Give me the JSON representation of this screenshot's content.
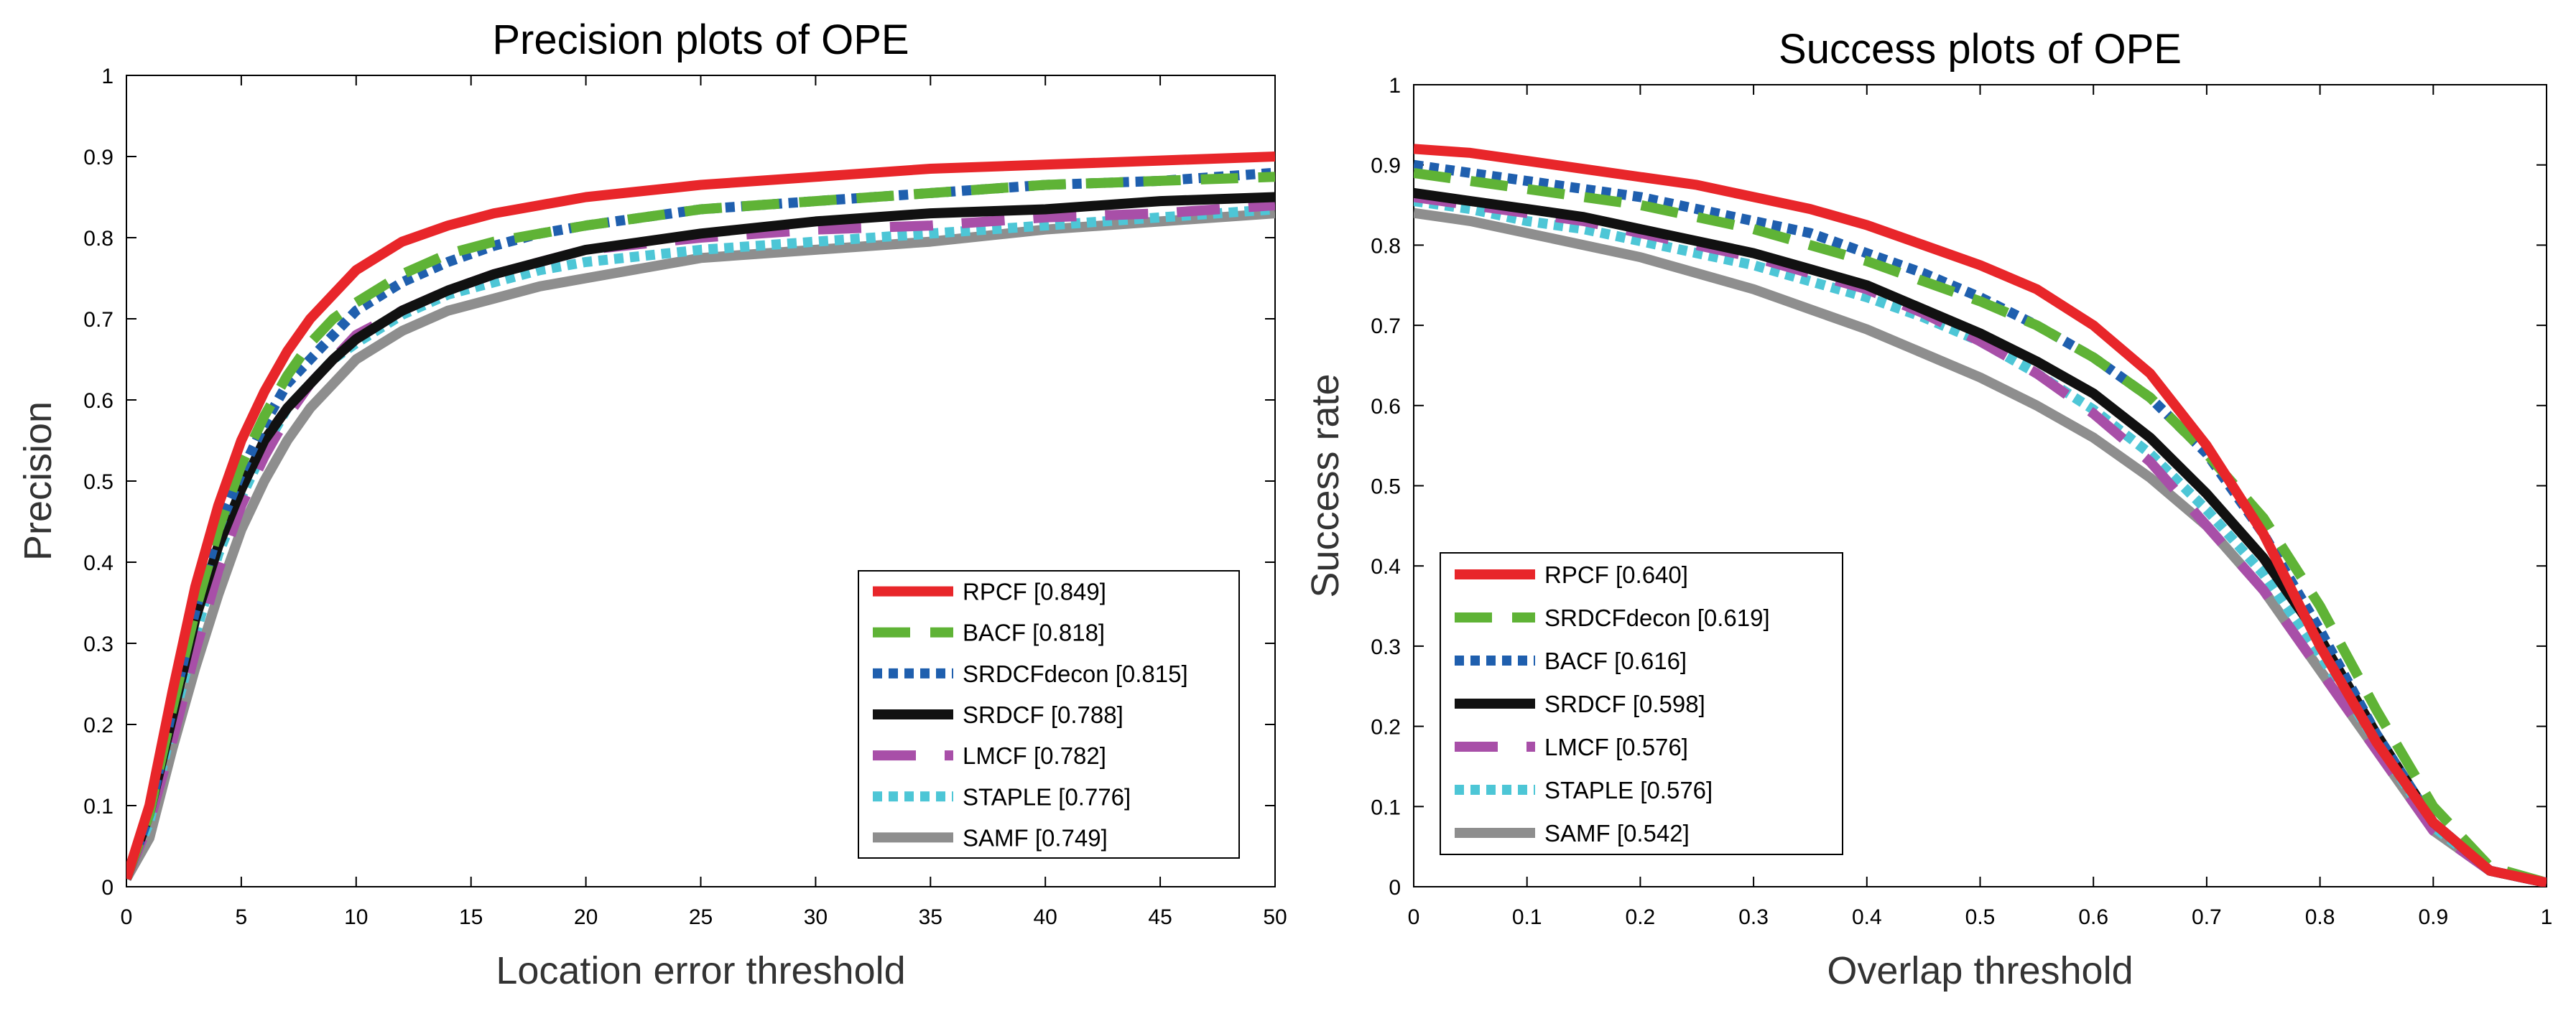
{
  "chart_data": [
    {
      "type": "line",
      "title": "Precision plots of OPE",
      "xlabel": "Location error threshold",
      "ylabel": "Precision",
      "xlim": [
        0,
        50
      ],
      "ylim": [
        0,
        1
      ],
      "xticks": [
        0,
        5,
        10,
        15,
        20,
        25,
        30,
        35,
        40,
        45,
        50
      ],
      "yticks": [
        0,
        0.1,
        0.2,
        0.3,
        0.4,
        0.5,
        0.6,
        0.7,
        0.8,
        0.9,
        1
      ],
      "x": [
        0,
        1,
        2,
        3,
        4,
        5,
        6,
        7,
        8,
        9,
        10,
        12,
        14,
        16,
        18,
        20,
        25,
        30,
        35,
        40,
        45,
        50
      ],
      "legend_position": "bottom-right",
      "series": [
        {
          "name": "RPCF",
          "label": "RPCF [0.849]",
          "color": "#e8262a",
          "style": "solid",
          "values": [
            0.01,
            0.1,
            0.24,
            0.37,
            0.47,
            0.55,
            0.61,
            0.66,
            0.7,
            0.73,
            0.76,
            0.795,
            0.815,
            0.83,
            0.84,
            0.85,
            0.865,
            0.875,
            0.885,
            0.89,
            0.895,
            0.9
          ]
        },
        {
          "name": "BACF",
          "label": "BACF [0.818]",
          "color": "#5fb336",
          "style": "dash",
          "values": [
            0.01,
            0.09,
            0.22,
            0.34,
            0.44,
            0.52,
            0.58,
            0.63,
            0.67,
            0.7,
            0.72,
            0.755,
            0.78,
            0.795,
            0.805,
            0.815,
            0.835,
            0.845,
            0.855,
            0.865,
            0.87,
            0.875
          ]
        },
        {
          "name": "SRDCFdecon",
          "label": "SRDCFdecon [0.815]",
          "color": "#1f5fae",
          "style": "dot",
          "values": [
            0.01,
            0.09,
            0.22,
            0.34,
            0.44,
            0.51,
            0.57,
            0.62,
            0.65,
            0.68,
            0.71,
            0.745,
            0.77,
            0.79,
            0.805,
            0.815,
            0.835,
            0.845,
            0.855,
            0.865,
            0.87,
            0.88
          ]
        },
        {
          "name": "SRDCF",
          "label": "SRDCF [0.788]",
          "color": "#111111",
          "style": "solid",
          "values": [
            0.01,
            0.09,
            0.21,
            0.33,
            0.42,
            0.49,
            0.55,
            0.59,
            0.62,
            0.65,
            0.675,
            0.71,
            0.735,
            0.755,
            0.77,
            0.785,
            0.805,
            0.82,
            0.83,
            0.835,
            0.845,
            0.85
          ]
        },
        {
          "name": "LMCF",
          "label": "LMCF [0.782]",
          "color": "#a84fa8",
          "style": "longdash",
          "values": [
            0.01,
            0.08,
            0.18,
            0.29,
            0.39,
            0.47,
            0.53,
            0.58,
            0.62,
            0.65,
            0.68,
            0.71,
            0.735,
            0.755,
            0.77,
            0.785,
            0.8,
            0.81,
            0.815,
            0.825,
            0.83,
            0.84
          ]
        },
        {
          "name": "STAPLE",
          "label": "STAPLE [0.776]",
          "color": "#4dc6d6",
          "style": "dot",
          "values": [
            0.01,
            0.08,
            0.2,
            0.31,
            0.41,
            0.48,
            0.54,
            0.59,
            0.62,
            0.65,
            0.67,
            0.705,
            0.73,
            0.745,
            0.76,
            0.77,
            0.785,
            0.795,
            0.805,
            0.815,
            0.825,
            0.835
          ]
        },
        {
          "name": "SAMF",
          "label": "SAMF [0.749]",
          "color": "#8e8e8e",
          "style": "solid",
          "values": [
            0.01,
            0.06,
            0.17,
            0.27,
            0.36,
            0.44,
            0.5,
            0.55,
            0.59,
            0.62,
            0.65,
            0.685,
            0.71,
            0.725,
            0.74,
            0.75,
            0.775,
            0.785,
            0.795,
            0.81,
            0.82,
            0.83
          ]
        }
      ]
    },
    {
      "type": "line",
      "title": "Success plots of OPE",
      "xlabel": "Overlap threshold",
      "ylabel": "Success rate",
      "xlim": [
        0,
        1
      ],
      "ylim": [
        0,
        1
      ],
      "xticks": [
        0,
        0.1,
        0.2,
        0.3,
        0.4,
        0.5,
        0.6,
        0.7,
        0.8,
        0.9,
        1
      ],
      "yticks": [
        0,
        0.1,
        0.2,
        0.3,
        0.4,
        0.5,
        0.6,
        0.7,
        0.8,
        0.9,
        1
      ],
      "x": [
        0,
        0.05,
        0.1,
        0.15,
        0.2,
        0.25,
        0.3,
        0.35,
        0.4,
        0.45,
        0.5,
        0.55,
        0.6,
        0.65,
        0.7,
        0.75,
        0.8,
        0.85,
        0.9,
        0.95,
        1
      ],
      "legend_position": "bottom-left",
      "series": [
        {
          "name": "RPCF",
          "label": "RPCF [0.640]",
          "color": "#e8262a",
          "style": "solid",
          "values": [
            0.92,
            0.915,
            0.905,
            0.895,
            0.885,
            0.875,
            0.86,
            0.845,
            0.825,
            0.8,
            0.775,
            0.745,
            0.7,
            0.64,
            0.55,
            0.44,
            0.3,
            0.18,
            0.08,
            0.02,
            0.005
          ]
        },
        {
          "name": "SRDCFdecon",
          "label": "SRDCFdecon [0.619]",
          "color": "#5fb336",
          "style": "dash",
          "values": [
            0.89,
            0.88,
            0.87,
            0.86,
            0.85,
            0.835,
            0.82,
            0.8,
            0.78,
            0.755,
            0.73,
            0.7,
            0.66,
            0.61,
            0.54,
            0.46,
            0.35,
            0.22,
            0.1,
            0.025,
            0.005
          ]
        },
        {
          "name": "BACF",
          "label": "BACF [0.616]",
          "color": "#1f5fae",
          "style": "dot",
          "values": [
            0.9,
            0.89,
            0.88,
            0.87,
            0.86,
            0.845,
            0.83,
            0.815,
            0.79,
            0.765,
            0.735,
            0.7,
            0.66,
            0.61,
            0.54,
            0.44,
            0.32,
            0.19,
            0.08,
            0.02,
            0.005
          ]
        },
        {
          "name": "SRDCF",
          "label": "SRDCF [0.598]",
          "color": "#111111",
          "style": "solid",
          "values": [
            0.865,
            0.855,
            0.845,
            0.835,
            0.82,
            0.805,
            0.79,
            0.77,
            0.75,
            0.72,
            0.69,
            0.655,
            0.615,
            0.56,
            0.49,
            0.41,
            0.31,
            0.19,
            0.08,
            0.02,
            0.005
          ]
        },
        {
          "name": "LMCF",
          "label": "LMCF [0.576]",
          "color": "#a84fa8",
          "style": "longdash",
          "values": [
            0.86,
            0.85,
            0.84,
            0.83,
            0.815,
            0.8,
            0.785,
            0.765,
            0.745,
            0.715,
            0.68,
            0.64,
            0.59,
            0.53,
            0.45,
            0.37,
            0.27,
            0.17,
            0.07,
            0.02,
            0.005
          ]
        },
        {
          "name": "STAPLE",
          "label": "STAPLE [0.576]",
          "color": "#4dc6d6",
          "style": "dot",
          "values": [
            0.855,
            0.845,
            0.83,
            0.82,
            0.805,
            0.79,
            0.775,
            0.755,
            0.735,
            0.71,
            0.68,
            0.64,
            0.595,
            0.54,
            0.47,
            0.39,
            0.29,
            0.18,
            0.075,
            0.02,
            0.005
          ]
        },
        {
          "name": "SAMF",
          "label": "SAMF [0.542]",
          "color": "#8e8e8e",
          "style": "solid",
          "values": [
            0.84,
            0.83,
            0.815,
            0.8,
            0.785,
            0.765,
            0.745,
            0.72,
            0.695,
            0.665,
            0.635,
            0.6,
            0.56,
            0.51,
            0.45,
            0.37,
            0.27,
            0.17,
            0.07,
            0.02,
            0.005
          ]
        }
      ]
    }
  ]
}
